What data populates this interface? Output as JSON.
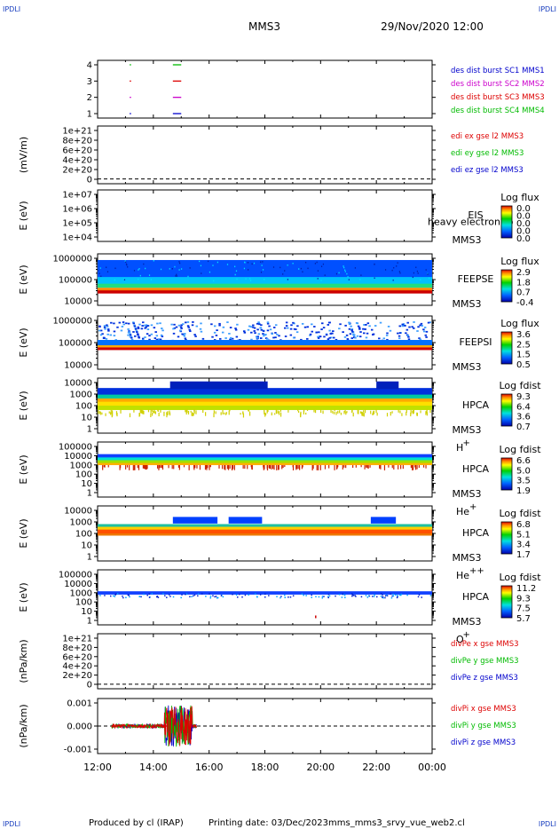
{
  "header": {
    "corner_label": "IPDLI",
    "mission": "MMS3",
    "datetime": "29/Nov/2020 12:00"
  },
  "footer": {
    "produced_by": "Produced by cl (IRAP)",
    "printing_date": "Printing date: 03/Dec/2023",
    "filename": "mms_mms3_srvy_vue_web2.cl"
  },
  "colors": {
    "red": "#dd0000",
    "green": "#00bb00",
    "blue": "#0000cc",
    "magenta": "#cc00cc",
    "panel_border": "#000000"
  },
  "x_axis": {
    "tick_labels": [
      "12:00",
      "14:00",
      "16:00",
      "18:00",
      "20:00",
      "22:00",
      "00:00"
    ],
    "range_hours": [
      12,
      24
    ]
  },
  "chart_data": [
    {
      "type": "line",
      "id": "burst",
      "ylabel": "",
      "y_ticks": [
        "4",
        "3",
        "2",
        "1"
      ],
      "ylim": [
        0.5,
        4.5
      ],
      "series": [
        {
          "name": "des dist burst SC1 MMS1",
          "color": "#0000cc",
          "y": 1,
          "x": [
            [
              13.15,
              13.2
            ],
            [
              14.7,
              15.0
            ]
          ]
        },
        {
          "name": "des dist burst SC2 MMS2",
          "color": "#cc00cc",
          "y": 2,
          "x": [
            [
              13.15,
              13.2
            ],
            [
              14.7,
              15.0
            ]
          ]
        },
        {
          "name": "des dist burst SC3 MMS3",
          "color": "#dd0000",
          "y": 3,
          "x": [
            [
              13.15,
              13.2
            ],
            [
              14.7,
              15.0
            ]
          ]
        },
        {
          "name": "des dist burst SC4 MMS4",
          "color": "#00bb00",
          "y": 4,
          "x": [
            [
              13.15,
              13.2
            ],
            [
              14.7,
              15.0
            ]
          ]
        }
      ]
    },
    {
      "type": "line",
      "id": "edi",
      "ylabel": "(mV/m)",
      "y_ticks": [
        "1e+21",
        "8e+20",
        "6e+20",
        "4e+20",
        "2e+20",
        "0"
      ],
      "ylim": [
        -1e+20,
        1.1e+21
      ],
      "zero_line": true,
      "series": [
        {
          "name": "edi ex gse l2 MMS3",
          "color": "#dd0000"
        },
        {
          "name": "edi ey gse l2 MMS3",
          "color": "#00bb00"
        },
        {
          "name": "edi ez gse l2 MMS3",
          "color": "#0000cc"
        }
      ]
    },
    {
      "type": "heatmap",
      "id": "eis",
      "ylabel": "E (eV)",
      "y_ticks": [
        "1e+07",
        "1e+06",
        "1e+05",
        "1e+04"
      ],
      "instrument": "EIS",
      "spacecraft": "MMS3",
      "overlay_text": "heavy electron to",
      "colorbar": {
        "title": "Log flux",
        "labels": [
          "0.0",
          "0.0",
          "0.0",
          "0.0",
          "0.0"
        ]
      }
    },
    {
      "type": "heatmap",
      "id": "feepse",
      "ylabel": "E (eV)",
      "y_ticks": [
        "1000000",
        "100000",
        "10000"
      ],
      "instrument": "FEEPSE",
      "spacecraft": "MMS3",
      "colorbar": {
        "title": "Log flux",
        "labels": [
          "2.9",
          "1.8",
          "0.7",
          "-0.4"
        ]
      }
    },
    {
      "type": "heatmap",
      "id": "feepsi",
      "ylabel": "E (eV)",
      "y_ticks": [
        "1000000",
        "100000",
        "10000"
      ],
      "instrument": "FEEPSI",
      "spacecraft": "MMS3",
      "colorbar": {
        "title": "Log flux",
        "labels": [
          "3.6",
          "2.5",
          "1.5",
          "0.5"
        ]
      }
    },
    {
      "type": "heatmap",
      "id": "hpca_h",
      "ylabel": "E (eV)",
      "y_ticks": [
        "10000",
        "1000",
        "100",
        "10",
        "1"
      ],
      "instrument": "HPCA",
      "spacecraft": "MMS3",
      "species": "H",
      "species_sup": "+",
      "colorbar": {
        "title": "Log fdist",
        "labels": [
          "9.3",
          "6.4",
          "3.6",
          "0.7"
        ]
      }
    },
    {
      "type": "heatmap",
      "id": "hpca_he",
      "ylabel": "E (eV)",
      "y_ticks": [
        "100000",
        "10000",
        "1000",
        "100",
        "10",
        "1"
      ],
      "instrument": "HPCA",
      "spacecraft": "MMS3",
      "species": "He",
      "species_sup": "+",
      "colorbar": {
        "title": "Log fdist",
        "labels": [
          "6.6",
          "5.0",
          "3.5",
          "1.9"
        ]
      }
    },
    {
      "type": "heatmap",
      "id": "hpca_hepp",
      "ylabel": "E (eV)",
      "y_ticks": [
        "10000",
        "1000",
        "100",
        "10",
        "1"
      ],
      "instrument": "HPCA",
      "spacecraft": "MMS3",
      "species": "He",
      "species_sup": "++",
      "colorbar": {
        "title": "Log fdist",
        "labels": [
          "6.8",
          "5.1",
          "3.4",
          "1.7"
        ]
      }
    },
    {
      "type": "heatmap",
      "id": "hpca_o",
      "ylabel": "E (eV)",
      "y_ticks": [
        "100000",
        "10000",
        "1000",
        "100",
        "10",
        "1"
      ],
      "instrument": "HPCA",
      "spacecraft": "MMS3",
      "species": "O",
      "species_sup": "+",
      "colorbar": {
        "title": "Log fdist",
        "labels": [
          "11.2",
          "9.3",
          "7.5",
          "5.7"
        ]
      }
    },
    {
      "type": "line",
      "id": "divpe",
      "ylabel": "(nPa/km)",
      "y_ticks": [
        "1e+21",
        "8e+20",
        "6e+20",
        "4e+20",
        "2e+20",
        "0"
      ],
      "ylim": [
        -1e+20,
        1.1e+21
      ],
      "zero_line": true,
      "series": [
        {
          "name": "divPe x gse MMS3",
          "color": "#dd0000"
        },
        {
          "name": "divPe y gse MMS3",
          "color": "#00bb00"
        },
        {
          "name": "divPe z gse MMS3",
          "color": "#0000cc"
        }
      ]
    },
    {
      "type": "line",
      "id": "divpi",
      "ylabel": "(nPa/km)",
      "y_ticks": [
        "0.001",
        "0.000",
        "-0.001"
      ],
      "ylim": [
        -0.0016,
        0.0016
      ],
      "zero_line": true,
      "data_range_hours": [
        12.5,
        15.55
      ],
      "series": [
        {
          "name": "divPi x gse MMS3",
          "color": "#dd0000"
        },
        {
          "name": "divPi y gse MMS3",
          "color": "#00bb00"
        },
        {
          "name": "divPi z gse MMS3",
          "color": "#0000cc"
        }
      ]
    }
  ]
}
